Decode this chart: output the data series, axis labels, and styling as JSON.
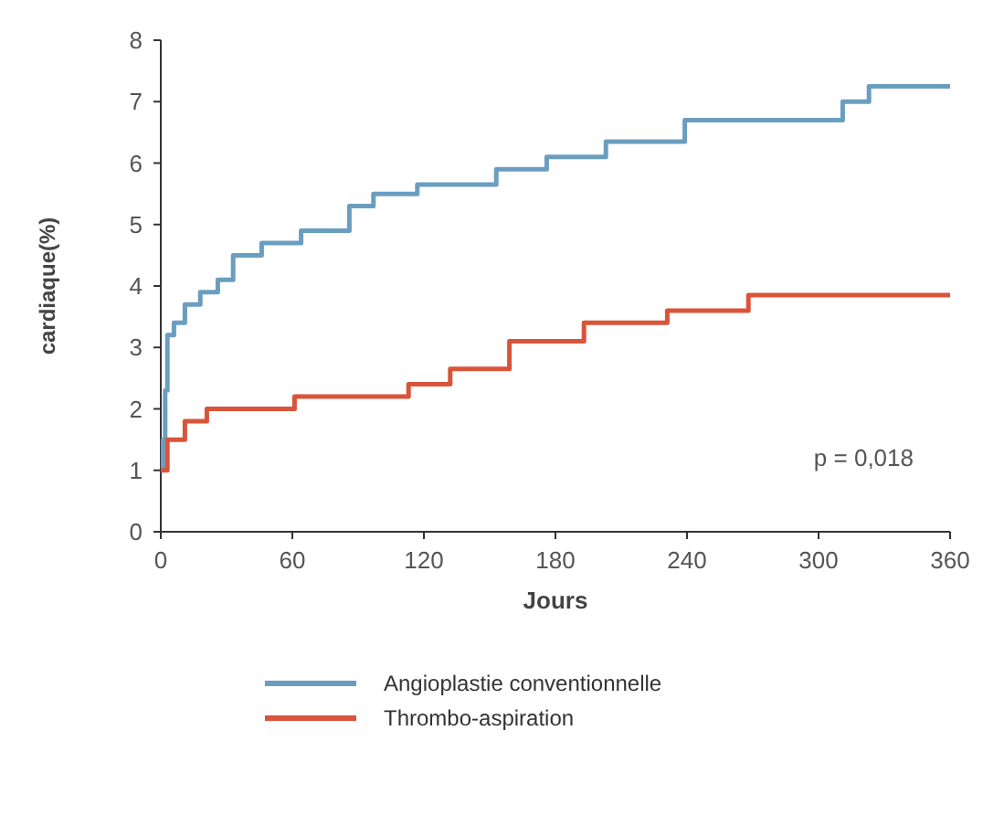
{
  "chart_data": {
    "type": "step",
    "xlabel": "Jours",
    "ylabel": "cardiaque(%)",
    "xlim": [
      0,
      360
    ],
    "xticks": [
      0,
      60,
      120,
      180,
      240,
      300,
      360
    ],
    "ylim": [
      0,
      8
    ],
    "yticks": [
      0,
      1,
      2,
      3,
      4,
      5,
      6,
      7,
      8
    ],
    "legend": "bottom",
    "grid": false,
    "series": [
      {
        "name": "Angioplastie conventionnelle",
        "color": "#6a9ec0",
        "x": [
          0,
          1,
          2,
          3,
          6,
          11,
          18,
          26,
          33,
          46,
          64,
          86,
          97,
          117,
          153,
          176,
          203,
          239,
          311,
          323,
          360
        ],
        "values": [
          1.0,
          1.5,
          2.3,
          3.2,
          3.4,
          3.7,
          3.9,
          4.1,
          4.5,
          4.7,
          4.9,
          5.3,
          5.5,
          5.65,
          5.9,
          6.1,
          6.35,
          6.7,
          7.0,
          7.25,
          7.25
        ]
      },
      {
        "name": "Thrombo-aspiration",
        "color": "#d9543a",
        "x": [
          0,
          3,
          11,
          21,
          61,
          113,
          132,
          159,
          193,
          231,
          268,
          360
        ],
        "values": [
          1.0,
          1.5,
          1.8,
          2.0,
          2.2,
          2.4,
          2.65,
          3.1,
          3.4,
          3.6,
          3.85,
          3.85
        ]
      }
    ],
    "annotations": [
      "p = 0,018"
    ]
  }
}
